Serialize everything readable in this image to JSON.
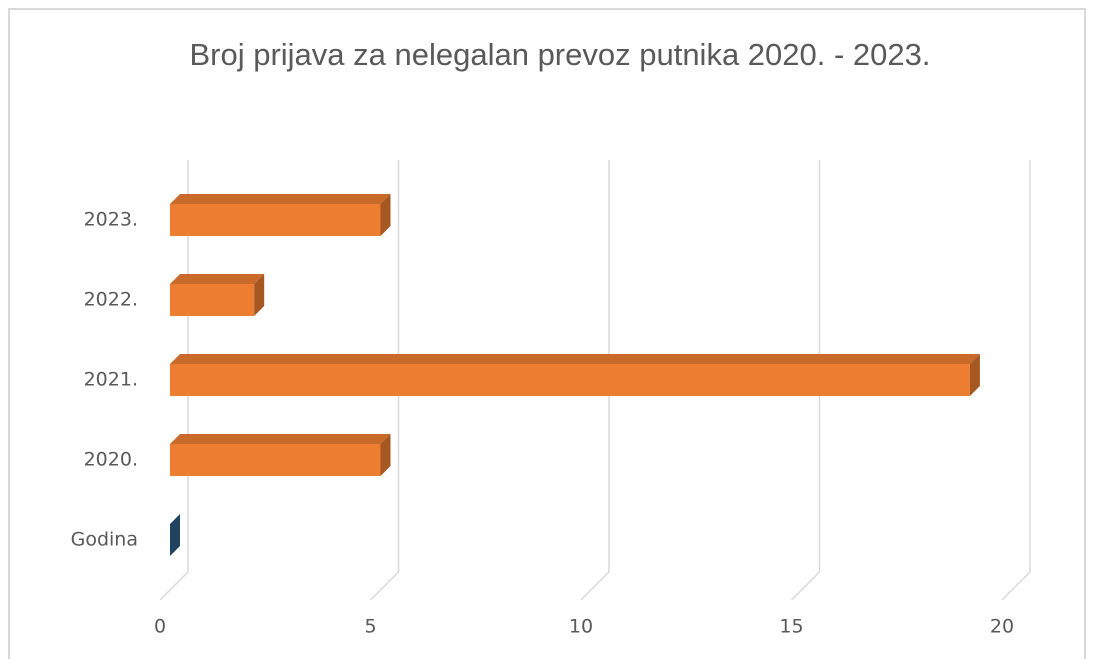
{
  "chart_data": {
    "type": "bar3d_horizontal",
    "title": "Broj prijava za nelegalan prevoz putnika 2020. - 2023.",
    "categories": [
      "Godina",
      "2020.",
      "2021.",
      "2022.",
      "2023."
    ],
    "values": [
      0,
      5,
      19,
      2,
      5
    ],
    "colors": [
      "#2e5f8a",
      "#ed7d31",
      "#ed7d31",
      "#ed7d31",
      "#ed7d31"
    ],
    "xlim": [
      0,
      20
    ],
    "xticks": [
      0,
      5,
      10,
      15,
      20
    ],
    "grid": true
  }
}
